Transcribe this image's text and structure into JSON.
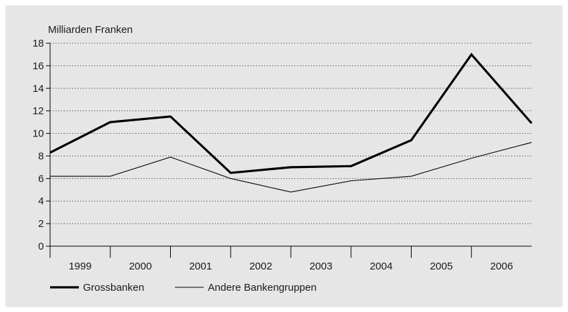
{
  "chart_data": {
    "type": "line",
    "ylabel": "Milliarden Franken",
    "ylim": [
      0,
      18
    ],
    "yticks": [
      0,
      2,
      4,
      6,
      8,
      10,
      12,
      14,
      16,
      18
    ],
    "categories": [
      "1999",
      "2000",
      "2001",
      "2002",
      "2003",
      "2004",
      "2005",
      "2006"
    ],
    "x": [
      1998.5,
      1999.5,
      2000.5,
      2001.5,
      2002.5,
      2003.5,
      2004.5,
      2005.5,
      2006.5
    ],
    "grid": true,
    "legend_position": "bottom-left",
    "series": [
      {
        "name": "Grossbanken",
        "values": [
          8.3,
          11.0,
          11.5,
          6.5,
          7.0,
          7.1,
          9.4,
          17.0,
          10.9
        ],
        "color": "#000000",
        "style": "thick"
      },
      {
        "name": "Andere Bankengruppen",
        "values": [
          6.2,
          6.2,
          7.9,
          6.0,
          4.8,
          5.8,
          6.2,
          7.8,
          9.2
        ],
        "color": "#000000",
        "style": "thin"
      }
    ]
  }
}
